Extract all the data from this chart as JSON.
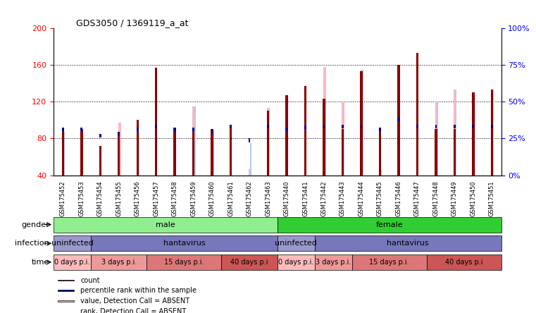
{
  "title": "GDS3050 / 1369119_a_at",
  "samples": [
    "GSM175452",
    "GSM175453",
    "GSM175454",
    "GSM175455",
    "GSM175456",
    "GSM175457",
    "GSM175458",
    "GSM175459",
    "GSM175460",
    "GSM175461",
    "GSM175462",
    "GSM175463",
    "GSM175440",
    "GSM175441",
    "GSM175442",
    "GSM175443",
    "GSM175444",
    "GSM175445",
    "GSM175446",
    "GSM175447",
    "GSM175448",
    "GSM175449",
    "GSM175450",
    "GSM175451"
  ],
  "count_values": [
    90,
    90,
    72,
    85,
    100,
    157,
    92,
    92,
    90,
    92,
    40,
    110,
    127,
    137,
    123,
    90,
    153,
    90,
    160,
    173,
    90,
    90,
    130,
    133
  ],
  "rank_values": [
    90,
    90,
    83,
    85,
    90,
    93,
    90,
    90,
    88,
    93,
    78,
    93,
    90,
    92,
    93,
    93,
    93,
    90,
    101,
    93,
    93,
    93,
    93,
    93
  ],
  "absent_value_values": [
    87,
    0,
    0,
    97,
    0,
    0,
    0,
    115,
    88,
    0,
    47,
    113,
    0,
    0,
    158,
    120,
    155,
    47,
    0,
    0,
    120,
    133,
    127,
    133
  ],
  "absent_rank_values": [
    87,
    0,
    0,
    0,
    87,
    0,
    0,
    115,
    88,
    0,
    75,
    113,
    0,
    0,
    100,
    92,
    155,
    30,
    0,
    0,
    120,
    133,
    127,
    133
  ],
  "ylim": [
    40,
    200
  ],
  "yticks_left": [
    40,
    80,
    120,
    160,
    200
  ],
  "color_count": "#8B0000",
  "color_rank": "#000090",
  "color_absent_value": "#FFB6C1",
  "color_absent_rank": "#B8C8E8",
  "gender_groups": [
    {
      "label": "male",
      "start": 0,
      "end": 12,
      "color": "#90EE90"
    },
    {
      "label": "female",
      "start": 12,
      "end": 24,
      "color": "#32CD32"
    }
  ],
  "infection_groups": [
    {
      "label": "uninfected",
      "start": 0,
      "end": 2,
      "color": "#9999CC"
    },
    {
      "label": "hantavirus",
      "start": 2,
      "end": 12,
      "color": "#7777BB"
    },
    {
      "label": "uninfected",
      "start": 12,
      "end": 14,
      "color": "#9999CC"
    },
    {
      "label": "hantavirus",
      "start": 14,
      "end": 24,
      "color": "#7777BB"
    }
  ],
  "time_groups": [
    {
      "label": "0 days p.i.",
      "start": 0,
      "end": 2,
      "color": "#FFBBBB"
    },
    {
      "label": "3 days p.i.",
      "start": 2,
      "end": 5,
      "color": "#EE9999"
    },
    {
      "label": "15 days p.i.",
      "start": 5,
      "end": 9,
      "color": "#DD7777"
    },
    {
      "label": "40 days p.i",
      "start": 9,
      "end": 12,
      "color": "#CC5555"
    },
    {
      "label": "0 days p.i.",
      "start": 12,
      "end": 14,
      "color": "#FFBBBB"
    },
    {
      "label": "3 days p.i.",
      "start": 14,
      "end": 16,
      "color": "#EE9999"
    },
    {
      "label": "15 days p.i.",
      "start": 16,
      "end": 20,
      "color": "#DD7777"
    },
    {
      "label": "40 days p.i",
      "start": 20,
      "end": 24,
      "color": "#CC5555"
    }
  ],
  "legend_items": [
    {
      "color": "#8B0000",
      "label": "count"
    },
    {
      "color": "#000090",
      "label": "percentile rank within the sample"
    },
    {
      "color": "#FFB6C1",
      "label": "value, Detection Call = ABSENT"
    },
    {
      "color": "#B8C8E8",
      "label": "rank, Detection Call = ABSENT"
    }
  ]
}
